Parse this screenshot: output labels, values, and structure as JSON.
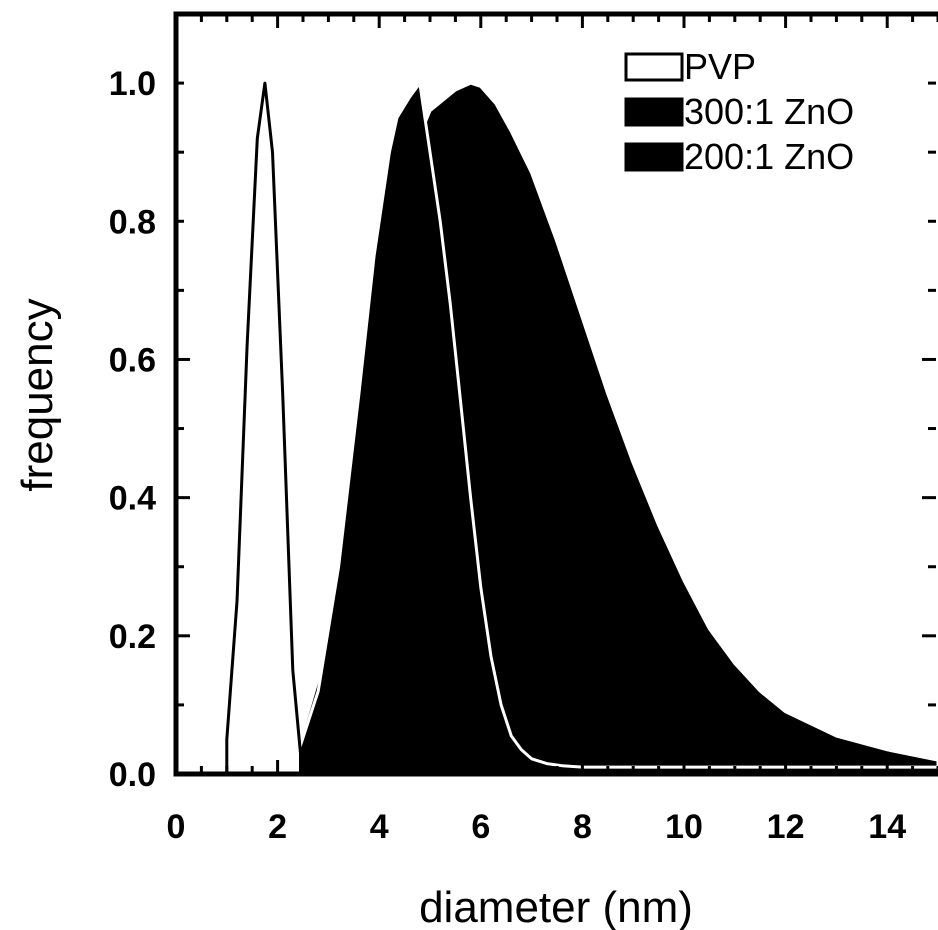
{
  "chart_data": {
    "type": "area",
    "xlabel": "diameter (nm)",
    "ylabel": "frequency",
    "xlim": [
      0,
      15
    ],
    "ylim": [
      0,
      1.1
    ],
    "xticks": [
      0,
      2,
      4,
      6,
      8,
      10,
      12,
      14
    ],
    "yticks": [
      0.0,
      0.2,
      0.4,
      0.6,
      0.8,
      1.0
    ],
    "xtick_labels": [
      "0",
      "2",
      "4",
      "6",
      "8",
      "10",
      "12",
      "14"
    ],
    "ytick_labels": [
      "0.0",
      "0.2",
      "0.4",
      "0.6",
      "0.8",
      "1.0"
    ],
    "legend_position": "top-right",
    "grid": false,
    "series": [
      {
        "name": "PVP",
        "fill": "#ffffff",
        "stroke": "#000000",
        "x": [
          1.0,
          1.2,
          1.4,
          1.6,
          1.75,
          1.9,
          2.1,
          2.3,
          2.45
        ],
        "y": [
          0.05,
          0.25,
          0.62,
          0.92,
          1.0,
          0.9,
          0.55,
          0.15,
          0.03
        ]
      },
      {
        "name": "300:1 ZnO",
        "fill": "#000000",
        "stroke": "#ffffff",
        "x": [
          1.6,
          2.0,
          2.4,
          2.8,
          3.2,
          3.6,
          3.9,
          4.2,
          4.35,
          4.6,
          4.8,
          5.0,
          5.2,
          5.4,
          5.6,
          5.8,
          6.0,
          6.2,
          6.4,
          6.6,
          6.8,
          7.0,
          7.3,
          7.6,
          8.0,
          9.0,
          10.0,
          12.0,
          15.0
        ],
        "y": [
          0.0,
          0.005,
          0.03,
          0.12,
          0.3,
          0.55,
          0.75,
          0.9,
          0.95,
          0.98,
          1.0,
          0.9,
          0.8,
          0.68,
          0.54,
          0.4,
          0.27,
          0.17,
          0.1,
          0.055,
          0.035,
          0.022,
          0.015,
          0.012,
          0.01,
          0.01,
          0.01,
          0.01,
          0.01
        ]
      },
      {
        "name": "200:1 ZnO",
        "fill": "#000000",
        "stroke": "#ffffff",
        "x": [
          1.6,
          2.0,
          2.4,
          2.8,
          3.2,
          3.6,
          4.0,
          4.5,
          5.0,
          5.5,
          5.8,
          6.0,
          6.3,
          6.6,
          7.0,
          7.5,
          8.0,
          8.5,
          9.0,
          9.5,
          10.0,
          10.5,
          11.0,
          11.5,
          12.0,
          13.0,
          14.0,
          15.0
        ],
        "y": [
          0.0,
          0.005,
          0.04,
          0.14,
          0.3,
          0.5,
          0.7,
          0.87,
          0.96,
          0.99,
          1.0,
          0.995,
          0.97,
          0.93,
          0.87,
          0.77,
          0.66,
          0.55,
          0.45,
          0.36,
          0.28,
          0.21,
          0.16,
          0.12,
          0.09,
          0.055,
          0.035,
          0.02
        ]
      }
    ]
  }
}
